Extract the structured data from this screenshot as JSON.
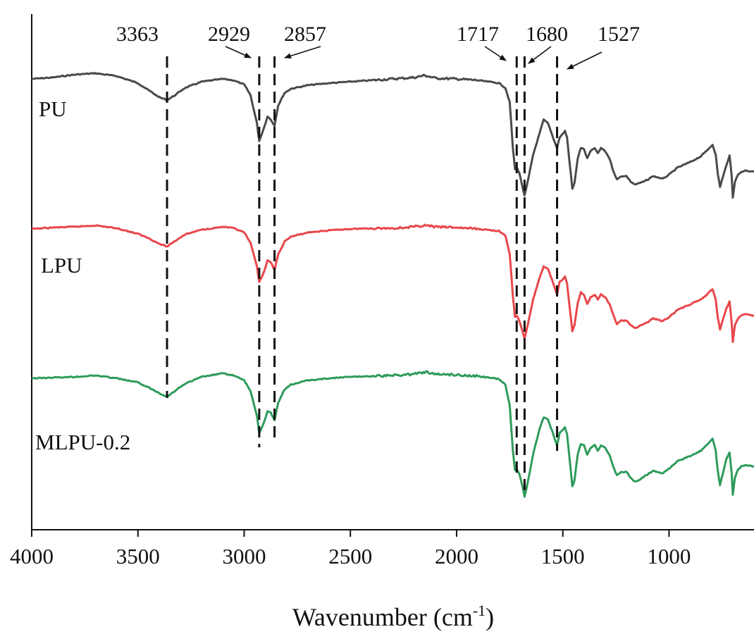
{
  "chart_data": {
    "type": "line",
    "xlabel": "Wavenumber (cm",
    "xlabel_sup": "-1",
    "xlabel_end": ")",
    "ylabel": "",
    "xlim": [
      4000,
      600
    ],
    "x_reversed": true,
    "grid": false,
    "x_ticks": [
      4000,
      3500,
      3000,
      2500,
      2000,
      1500,
      1000
    ],
    "x_tick_labels": [
      "4000",
      "3500",
      "3000",
      "2500",
      "2000",
      "1500",
      "1000"
    ],
    "peak_lines": [
      {
        "x": 3363,
        "label": "3363",
        "arrow": false
      },
      {
        "x": 2929,
        "label": "2929",
        "arrow": true
      },
      {
        "x": 2857,
        "label": "2857",
        "arrow": true
      },
      {
        "x": 1717,
        "label": "1717",
        "arrow": true
      },
      {
        "x": 1680,
        "label": "1680",
        "arrow": true
      },
      {
        "x": 1527,
        "label": "1527",
        "arrow": true
      }
    ],
    "series": [
      {
        "name": "PU",
        "color": "#4a4a4a",
        "points": [
          [
            4000,
            112
          ],
          [
            3900,
            110
          ],
          [
            3800,
            106
          ],
          [
            3700,
            104
          ],
          [
            3600,
            108
          ],
          [
            3500,
            118
          ],
          [
            3450,
            128
          ],
          [
            3400,
            138
          ],
          [
            3363,
            142
          ],
          [
            3330,
            136
          ],
          [
            3280,
            125
          ],
          [
            3200,
            116
          ],
          [
            3100,
            112
          ],
          [
            3050,
            114
          ],
          [
            3000,
            120
          ],
          [
            2970,
            135
          ],
          [
            2940,
            175
          ],
          [
            2929,
            200
          ],
          [
            2905,
            180
          ],
          [
            2890,
            165
          ],
          [
            2875,
            170
          ],
          [
            2857,
            178
          ],
          [
            2840,
            150
          ],
          [
            2810,
            132
          ],
          [
            2780,
            126
          ],
          [
            2700,
            121
          ],
          [
            2600,
            118
          ],
          [
            2500,
            116
          ],
          [
            2400,
            114
          ],
          [
            2300,
            112
          ],
          [
            2200,
            110
          ],
          [
            2150,
            107
          ],
          [
            2100,
            111
          ],
          [
            2000,
            112
          ],
          [
            1900,
            114
          ],
          [
            1800,
            118
          ],
          [
            1770,
            125
          ],
          [
            1750,
            145
          ],
          [
            1735,
            210
          ],
          [
            1725,
            240
          ],
          [
            1717,
            238
          ],
          [
            1705,
            245
          ],
          [
            1690,
            265
          ],
          [
            1680,
            278
          ],
          [
            1665,
            258
          ],
          [
            1640,
            220
          ],
          [
            1610,
            190
          ],
          [
            1590,
            170
          ],
          [
            1570,
            175
          ],
          [
            1550,
            192
          ],
          [
            1530,
            208
          ],
          [
            1527,
            210
          ],
          [
            1515,
            195
          ],
          [
            1500,
            190
          ],
          [
            1490,
            186
          ],
          [
            1480,
            195
          ],
          [
            1470,
            225
          ],
          [
            1455,
            268
          ],
          [
            1445,
            260
          ],
          [
            1430,
            225
          ],
          [
            1415,
            210
          ],
          [
            1400,
            212
          ],
          [
            1385,
            225
          ],
          [
            1370,
            215
          ],
          [
            1350,
            210
          ],
          [
            1335,
            218
          ],
          [
            1320,
            210
          ],
          [
            1300,
            215
          ],
          [
            1280,
            225
          ],
          [
            1265,
            240
          ],
          [
            1245,
            255
          ],
          [
            1225,
            250
          ],
          [
            1200,
            250
          ],
          [
            1180,
            258
          ],
          [
            1160,
            262
          ],
          [
            1140,
            260
          ],
          [
            1120,
            258
          ],
          [
            1100,
            255
          ],
          [
            1075,
            250
          ],
          [
            1050,
            252
          ],
          [
            1030,
            254
          ],
          [
            1000,
            248
          ],
          [
            960,
            238
          ],
          [
            900,
            230
          ],
          [
            850,
            222
          ],
          [
            810,
            210
          ],
          [
            795,
            205
          ],
          [
            780,
            220
          ],
          [
            770,
            248
          ],
          [
            760,
            265
          ],
          [
            745,
            250
          ],
          [
            730,
            235
          ],
          [
            715,
            220
          ],
          [
            705,
            250
          ],
          [
            700,
            280
          ],
          [
            690,
            258
          ],
          [
            675,
            248
          ],
          [
            660,
            244
          ],
          [
            640,
            242
          ],
          [
            620,
            243
          ],
          [
            600,
            243
          ]
        ]
      },
      {
        "name": "LPU",
        "color": "#e8474b",
        "points": [
          [
            4000,
            325
          ],
          [
            3900,
            323
          ],
          [
            3800,
            322
          ],
          [
            3700,
            320
          ],
          [
            3600,
            324
          ],
          [
            3500,
            332
          ],
          [
            3450,
            338
          ],
          [
            3400,
            346
          ],
          [
            3363,
            350
          ],
          [
            3330,
            343
          ],
          [
            3280,
            333
          ],
          [
            3200,
            326
          ],
          [
            3100,
            322
          ],
          [
            3050,
            324
          ],
          [
            3000,
            330
          ],
          [
            2970,
            345
          ],
          [
            2940,
            378
          ],
          [
            2929,
            400
          ],
          [
            2905,
            385
          ],
          [
            2890,
            370
          ],
          [
            2875,
            372
          ],
          [
            2857,
            383
          ],
          [
            2840,
            362
          ],
          [
            2810,
            343
          ],
          [
            2780,
            336
          ],
          [
            2700,
            330
          ],
          [
            2600,
            327
          ],
          [
            2500,
            325
          ],
          [
            2400,
            324
          ],
          [
            2300,
            324
          ],
          [
            2200,
            322
          ],
          [
            2150,
            320
          ],
          [
            2100,
            322
          ],
          [
            2000,
            323
          ],
          [
            1900,
            325
          ],
          [
            1800,
            328
          ],
          [
            1770,
            335
          ],
          [
            1750,
            360
          ],
          [
            1735,
            420
          ],
          [
            1725,
            450
          ],
          [
            1717,
            448
          ],
          [
            1705,
            455
          ],
          [
            1690,
            470
          ],
          [
            1680,
            480
          ],
          [
            1665,
            462
          ],
          [
            1640,
            425
          ],
          [
            1610,
            395
          ],
          [
            1590,
            378
          ],
          [
            1570,
            382
          ],
          [
            1550,
            398
          ],
          [
            1530,
            415
          ],
          [
            1527,
            418
          ],
          [
            1515,
            400
          ],
          [
            1500,
            396
          ],
          [
            1490,
            393
          ],
          [
            1480,
            402
          ],
          [
            1470,
            430
          ],
          [
            1455,
            470
          ],
          [
            1445,
            462
          ],
          [
            1430,
            430
          ],
          [
            1415,
            415
          ],
          [
            1400,
            418
          ],
          [
            1385,
            432
          ],
          [
            1370,
            422
          ],
          [
            1350,
            418
          ],
          [
            1335,
            425
          ],
          [
            1320,
            418
          ],
          [
            1300,
            422
          ],
          [
            1280,
            432
          ],
          [
            1265,
            445
          ],
          [
            1245,
            460
          ],
          [
            1225,
            455
          ],
          [
            1200,
            455
          ],
          [
            1180,
            462
          ],
          [
            1160,
            466
          ],
          [
            1140,
            463
          ],
          [
            1120,
            460
          ],
          [
            1100,
            457
          ],
          [
            1075,
            452
          ],
          [
            1050,
            454
          ],
          [
            1030,
            456
          ],
          [
            1000,
            450
          ],
          [
            960,
            440
          ],
          [
            900,
            432
          ],
          [
            850,
            425
          ],
          [
            810,
            415
          ],
          [
            795,
            410
          ],
          [
            780,
            425
          ],
          [
            770,
            452
          ],
          [
            760,
            468
          ],
          [
            745,
            452
          ],
          [
            730,
            438
          ],
          [
            715,
            428
          ],
          [
            705,
            458
          ],
          [
            700,
            485
          ],
          [
            690,
            462
          ],
          [
            675,
            452
          ],
          [
            660,
            448
          ],
          [
            640,
            446
          ],
          [
            620,
            447
          ],
          [
            600,
            448
          ]
        ]
      },
      {
        "name": "MLPU-0.2",
        "color": "#2e9b5b",
        "points": [
          [
            4000,
            537
          ],
          [
            3900,
            536
          ],
          [
            3800,
            535
          ],
          [
            3700,
            533
          ],
          [
            3600,
            537
          ],
          [
            3500,
            543
          ],
          [
            3450,
            550
          ],
          [
            3400,
            558
          ],
          [
            3363,
            563
          ],
          [
            3330,
            556
          ],
          [
            3280,
            545
          ],
          [
            3200,
            535
          ],
          [
            3100,
            530
          ],
          [
            3050,
            533
          ],
          [
            3000,
            540
          ],
          [
            2970,
            555
          ],
          [
            2940,
            590
          ],
          [
            2929,
            615
          ],
          [
            2905,
            598
          ],
          [
            2890,
            584
          ],
          [
            2875,
            586
          ],
          [
            2857,
            597
          ],
          [
            2840,
            572
          ],
          [
            2810,
            553
          ],
          [
            2780,
            546
          ],
          [
            2700,
            540
          ],
          [
            2600,
            537
          ],
          [
            2500,
            535
          ],
          [
            2400,
            534
          ],
          [
            2300,
            533
          ],
          [
            2200,
            531
          ],
          [
            2150,
            528
          ],
          [
            2100,
            531
          ],
          [
            2000,
            532
          ],
          [
            1900,
            534
          ],
          [
            1800,
            538
          ],
          [
            1770,
            546
          ],
          [
            1750,
            575
          ],
          [
            1735,
            640
          ],
          [
            1725,
            668
          ],
          [
            1717,
            666
          ],
          [
            1705,
            672
          ],
          [
            1690,
            690
          ],
          [
            1680,
            705
          ],
          [
            1665,
            685
          ],
          [
            1640,
            645
          ],
          [
            1610,
            610
          ],
          [
            1590,
            592
          ],
          [
            1570,
            596
          ],
          [
            1550,
            612
          ],
          [
            1530,
            630
          ],
          [
            1527,
            632
          ],
          [
            1515,
            615
          ],
          [
            1500,
            610
          ],
          [
            1490,
            607
          ],
          [
            1480,
            616
          ],
          [
            1470,
            645
          ],
          [
            1455,
            690
          ],
          [
            1445,
            682
          ],
          [
            1430,
            645
          ],
          [
            1415,
            630
          ],
          [
            1400,
            632
          ],
          [
            1385,
            646
          ],
          [
            1370,
            636
          ],
          [
            1350,
            632
          ],
          [
            1335,
            640
          ],
          [
            1320,
            632
          ],
          [
            1300,
            636
          ],
          [
            1280,
            646
          ],
          [
            1265,
            660
          ],
          [
            1245,
            675
          ],
          [
            1225,
            670
          ],
          [
            1200,
            670
          ],
          [
            1180,
            678
          ],
          [
            1160,
            684
          ],
          [
            1140,
            681
          ],
          [
            1120,
            677
          ],
          [
            1100,
            673
          ],
          [
            1075,
            668
          ],
          [
            1050,
            670
          ],
          [
            1030,
            672
          ],
          [
            1000,
            665
          ],
          [
            960,
            655
          ],
          [
            900,
            647
          ],
          [
            850,
            640
          ],
          [
            810,
            628
          ],
          [
            795,
            622
          ],
          [
            780,
            640
          ],
          [
            770,
            670
          ],
          [
            760,
            688
          ],
          [
            745,
            670
          ],
          [
            730,
            652
          ],
          [
            715,
            642
          ],
          [
            705,
            672
          ],
          [
            700,
            702
          ],
          [
            690,
            678
          ],
          [
            675,
            666
          ],
          [
            660,
            662
          ],
          [
            640,
            660
          ],
          [
            620,
            661
          ],
          [
            600,
            662
          ]
        ]
      }
    ]
  }
}
